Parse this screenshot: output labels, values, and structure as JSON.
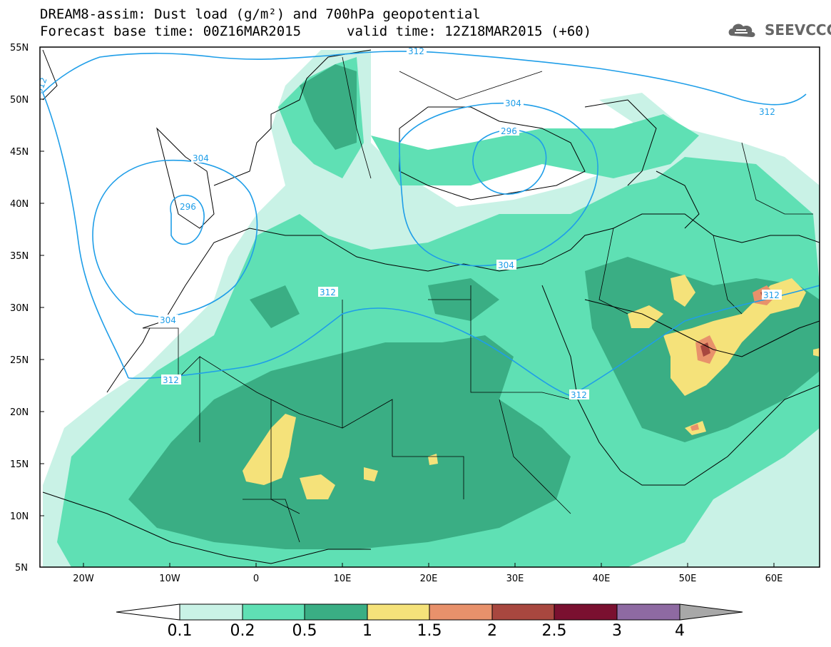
{
  "header": {
    "title_line1": "DREAM8-assim: Dust load (g/m²) and 700hPa geopotential",
    "base_time": "Forecast base time: 00Z16MAR2015",
    "valid_time": "valid time: 12Z18MAR2015 (+60)",
    "logo_text": "SEEVCCC"
  },
  "axes": {
    "lat_labels": [
      "55N",
      "50N",
      "45N",
      "40N",
      "35N",
      "30N",
      "25N",
      "20N",
      "15N",
      "10N",
      "5N"
    ],
    "lon_labels": [
      "20W",
      "10W",
      "0",
      "10E",
      "20E",
      "30E",
      "40E",
      "50E",
      "60E"
    ]
  },
  "contours": {
    "labels": [
      "312",
      "304",
      "296",
      "312",
      "304",
      "312",
      "304",
      "312",
      "312",
      "312",
      "312",
      "296",
      "304"
    ]
  },
  "colorbar": {
    "ticks": [
      "0.1",
      "0.2",
      "0.5",
      "1",
      "1.5",
      "2",
      "2.5",
      "3",
      "4"
    ],
    "colors": [
      "#c9f2e6",
      "#5fe0b4",
      "#3aae84",
      "#f5e27a",
      "#e8916b",
      "#a8473f",
      "#7a1030",
      "#8e6aa2",
      "#a8a8a8"
    ],
    "under_color": "#ffffff"
  },
  "colors": {
    "contour": "#1f9ee8",
    "border": "#000000",
    "level1": "#c9f2e6",
    "level2": "#5fe0b4",
    "level3": "#3aae84",
    "level4": "#f5e27a",
    "level5": "#e8916b",
    "level6": "#a8473f"
  }
}
